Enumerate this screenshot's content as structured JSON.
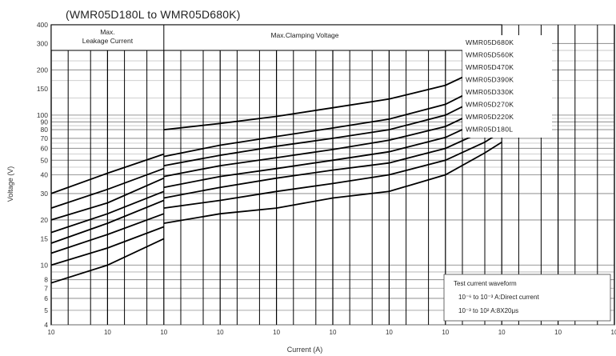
{
  "chart_data": {
    "type": "line",
    "title": "(WMR05D180L to WMR05D680K)",
    "xlabel": "Current (A)",
    "ylabel": "Voltage (V)",
    "x_scale": "log",
    "y_scale": "log",
    "xlim": [
      1e-06,
      1000
    ],
    "ylim": [
      4,
      400
    ],
    "x_tick_labels": [
      "10",
      "10",
      "10",
      "10",
      "10",
      "10",
      "10",
      "10",
      "10",
      "10",
      "10"
    ],
    "x_tick_values": [
      1e-06,
      1e-05,
      0.0001,
      0.001,
      0.01,
      0.1,
      1,
      10,
      100,
      1000,
      10000
    ],
    "y_tick_labels": [
      "4",
      "5",
      "6",
      "7",
      "8",
      "10",
      "15",
      "20",
      "30",
      "40",
      "50",
      "60",
      "70",
      "80",
      "90",
      "100",
      "150",
      "200",
      "300",
      "400"
    ],
    "y_tick_values": [
      4,
      5,
      6,
      7,
      8,
      10,
      15,
      20,
      30,
      40,
      50,
      60,
      70,
      80,
      90,
      100,
      150,
      200,
      300,
      400
    ],
    "region_labels": {
      "leakage_line1": "Max.",
      "leakage_line2": "Leakage Current",
      "clamping": "Max.Clamping Voltage"
    },
    "legend_order": [
      "WMR05D680K",
      "WMR05D560K",
      "WMR05D470K",
      "WMR05D390K",
      "WMR05D330K",
      "WMR05D270K",
      "WMR05D220K",
      "WMR05D180L"
    ],
    "note": {
      "line1": "Test current waveform",
      "line2": "10⁻⁶ to 10⁻³ A:Direct current",
      "line3": "10⁻³ to 10² A:8X20μs"
    },
    "series": [
      {
        "name": "WMR05D180L",
        "leakage": [
          [
            1e-06,
            7.6
          ],
          [
            1e-05,
            10
          ],
          [
            0.0001,
            15
          ]
        ],
        "clamp": [
          [
            0.0001,
            19
          ],
          [
            0.001,
            22
          ],
          [
            0.01,
            24
          ],
          [
            0.1,
            28
          ],
          [
            1,
            31
          ],
          [
            10,
            40
          ],
          [
            50,
            56
          ],
          [
            100,
            66
          ]
        ]
      },
      {
        "name": "WMR05D220K",
        "leakage": [
          [
            1e-06,
            10
          ],
          [
            1e-05,
            13
          ],
          [
            0.0001,
            18
          ]
        ],
        "clamp": [
          [
            0.0001,
            24
          ],
          [
            0.001,
            27
          ],
          [
            0.01,
            31
          ],
          [
            0.1,
            35
          ],
          [
            1,
            40
          ],
          [
            10,
            50
          ],
          [
            50,
            66
          ],
          [
            100,
            78
          ]
        ]
      },
      {
        "name": "WMR05D270K",
        "leakage": [
          [
            1e-06,
            12
          ],
          [
            1e-05,
            16
          ],
          [
            0.0001,
            22
          ]
        ],
        "clamp": [
          [
            0.0001,
            28
          ],
          [
            0.001,
            33
          ],
          [
            0.01,
            38
          ],
          [
            0.1,
            43
          ],
          [
            1,
            48
          ],
          [
            10,
            60
          ],
          [
            50,
            79
          ],
          [
            100,
            92
          ]
        ]
      },
      {
        "name": "WMR05D330K",
        "leakage": [
          [
            1e-06,
            14
          ],
          [
            1e-05,
            19
          ],
          [
            0.0001,
            27
          ]
        ],
        "clamp": [
          [
            0.0001,
            33
          ],
          [
            0.001,
            39
          ],
          [
            0.01,
            44
          ],
          [
            0.1,
            50
          ],
          [
            1,
            57
          ],
          [
            10,
            71
          ],
          [
            50,
            94
          ],
          [
            100,
            110
          ]
        ]
      },
      {
        "name": "WMR05D390K",
        "leakage": [
          [
            1e-06,
            16.5
          ],
          [
            1e-05,
            22
          ],
          [
            0.0001,
            31
          ]
        ],
        "clamp": [
          [
            0.0001,
            39
          ],
          [
            0.001,
            46
          ],
          [
            0.01,
            52
          ],
          [
            0.1,
            59
          ],
          [
            1,
            68
          ],
          [
            10,
            84
          ],
          [
            50,
            112
          ],
          [
            100,
            130
          ]
        ]
      },
      {
        "name": "WMR05D470K",
        "leakage": [
          [
            1e-06,
            20
          ],
          [
            1e-05,
            26
          ],
          [
            0.0001,
            38
          ]
        ],
        "clamp": [
          [
            0.0001,
            46
          ],
          [
            0.001,
            54
          ],
          [
            0.01,
            62
          ],
          [
            0.1,
            70
          ],
          [
            1,
            80
          ],
          [
            10,
            100
          ],
          [
            50,
            135
          ],
          [
            100,
            155
          ]
        ]
      },
      {
        "name": "WMR05D560K",
        "leakage": [
          [
            1e-06,
            24
          ],
          [
            1e-05,
            32
          ],
          [
            0.0001,
            44
          ]
        ],
        "clamp": [
          [
            0.0001,
            53
          ],
          [
            0.001,
            63
          ],
          [
            0.01,
            72
          ],
          [
            0.1,
            82
          ],
          [
            1,
            94
          ],
          [
            10,
            118
          ],
          [
            50,
            160
          ],
          [
            100,
            180
          ]
        ]
      },
      {
        "name": "WMR05D680K",
        "leakage": [
          [
            1e-06,
            30
          ],
          [
            1e-05,
            41
          ],
          [
            0.0001,
            55
          ]
        ],
        "clamp": [
          [
            0.0001,
            80
          ],
          [
            0.001,
            88
          ],
          [
            0.01,
            98
          ],
          [
            0.1,
            112
          ],
          [
            1,
            128
          ],
          [
            10,
            158
          ],
          [
            50,
            210
          ],
          [
            100,
            250
          ]
        ]
      }
    ],
    "grid": true
  }
}
